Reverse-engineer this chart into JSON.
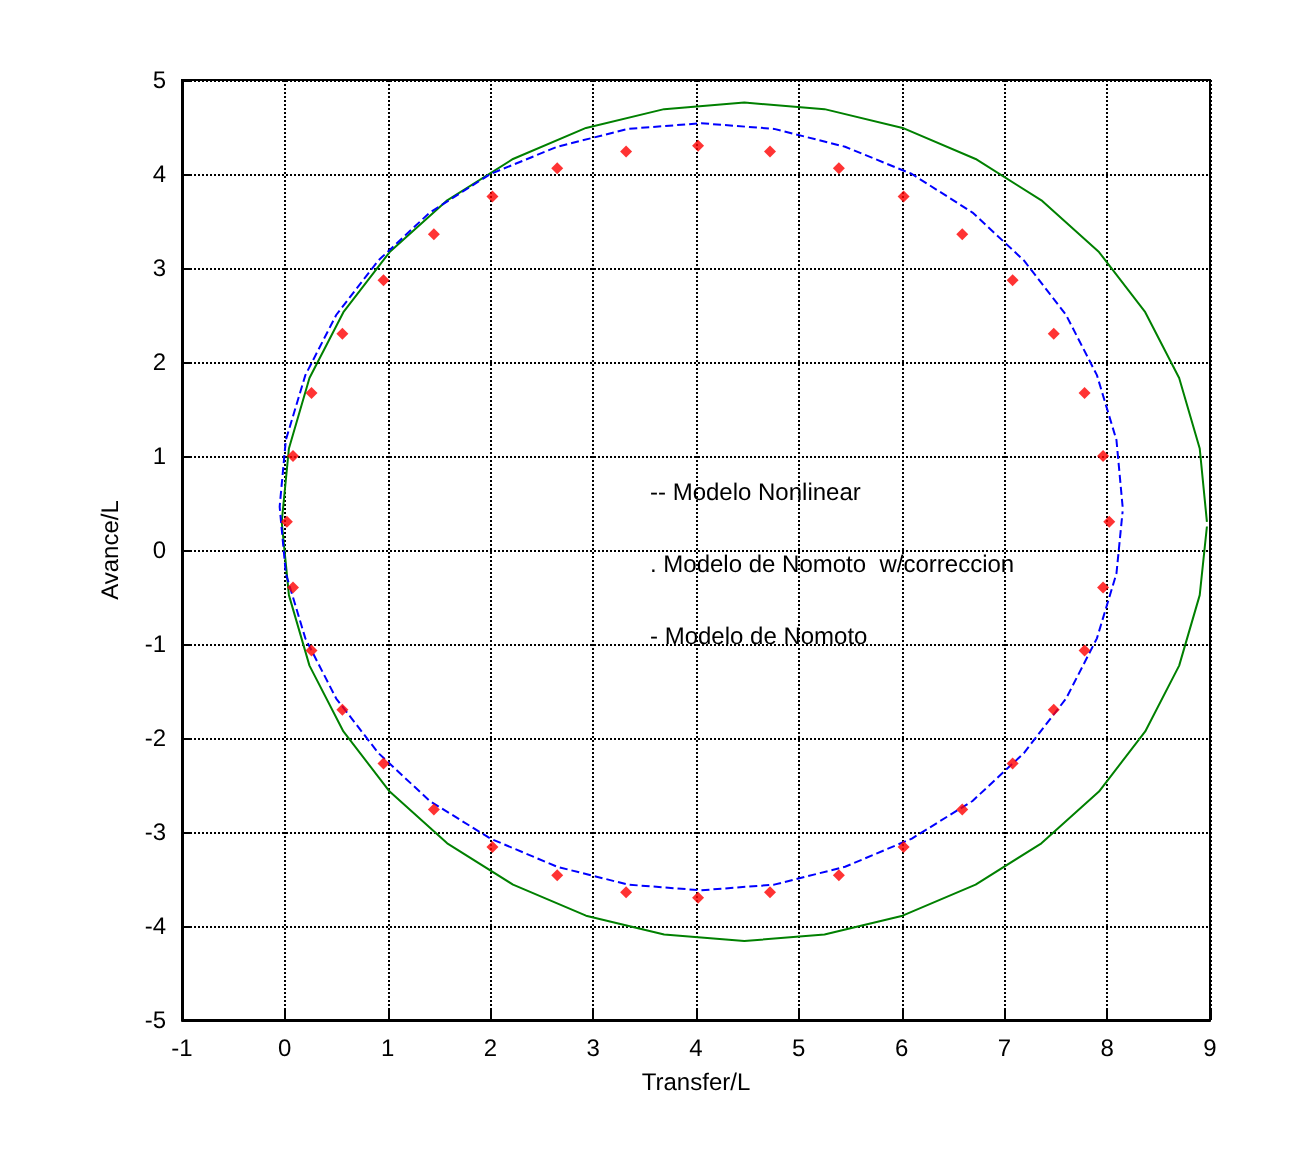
{
  "chart_data": {
    "type": "line",
    "xlabel": "Transfer/L",
    "ylabel": "Avance/L",
    "annotations": [
      "-- Modelo Nonlinear",
      ". Modelo de Nomoto  w/correccion",
      "- Modelo de Nomoto"
    ],
    "xlim": [
      -1,
      9
    ],
    "xticks": [
      -1,
      0,
      1,
      2,
      3,
      4,
      5,
      6,
      7,
      8,
      9
    ],
    "ylim": [
      -5,
      5
    ],
    "yticks": [
      -5,
      -4,
      -3,
      -2,
      -1,
      0,
      1,
      2,
      3,
      4,
      5
    ],
    "grid": true,
    "series": [
      {
        "type": "line",
        "color": "#008000",
        "line_style": "solid",
        "marker": "none",
        "x": [
          8.97,
          8.9,
          8.7,
          8.37,
          7.92,
          7.36,
          6.72,
          6.01,
          5.25,
          4.47,
          3.69,
          2.93,
          2.22,
          1.58,
          1.02,
          0.57,
          0.24,
          0.04,
          -0.03,
          0.04,
          0.24,
          0.57,
          1.02,
          1.58,
          2.22,
          2.93,
          3.69,
          4.47,
          5.25,
          6.01,
          6.72,
          7.36,
          7.92,
          8.37,
          8.7,
          8.9,
          8.97
        ],
        "values": [
          0.3,
          1.08,
          1.83,
          2.53,
          3.17,
          3.72,
          4.16,
          4.49,
          4.69,
          4.76,
          4.69,
          4.49,
          4.16,
          3.72,
          3.17,
          2.53,
          1.83,
          1.08,
          0.3,
          -0.48,
          -1.23,
          -1.93,
          -2.57,
          -3.12,
          -3.56,
          -3.89,
          -4.09,
          -4.16,
          -4.09,
          -3.89,
          -3.56,
          -3.12,
          -2.57,
          -1.93,
          -1.23,
          -0.48,
          0.25
        ]
      },
      {
        "type": "line",
        "color": "#0000ff",
        "line_style": "dashed",
        "marker": "none",
        "x": [
          8.15,
          8.09,
          7.9,
          7.6,
          7.19,
          6.69,
          6.1,
          5.45,
          4.76,
          4.05,
          3.34,
          2.65,
          2.0,
          1.41,
          0.91,
          0.5,
          0.2,
          0.01,
          -0.05,
          0.01,
          0.2,
          0.5,
          0.91,
          1.41,
          2.0,
          2.65,
          3.34,
          4.05,
          4.76,
          5.45,
          6.1,
          6.69,
          7.19,
          7.6,
          7.9,
          8.09,
          8.15
        ],
        "values": [
          0.46,
          1.17,
          1.86,
          2.5,
          3.08,
          3.59,
          4.0,
          4.29,
          4.48,
          4.54,
          4.48,
          4.29,
          4.0,
          3.59,
          3.08,
          2.5,
          1.86,
          1.17,
          0.46,
          -0.25,
          -0.94,
          -1.58,
          -2.16,
          -2.67,
          -3.07,
          -3.37,
          -3.56,
          -3.62,
          -3.56,
          -3.37,
          -3.07,
          -2.67,
          -2.16,
          -1.58,
          -0.94,
          -0.25,
          0.41
        ]
      },
      {
        "type": "scatter",
        "color": "#ff0000",
        "marker": "diamond",
        "x": [
          8.02,
          7.96,
          7.78,
          7.48,
          7.08,
          6.59,
          6.02,
          5.39,
          4.72,
          4.02,
          3.32,
          2.65,
          2.02,
          1.45,
          0.96,
          0.56,
          0.26,
          0.08,
          0.02,
          0.08,
          0.26,
          0.56,
          0.96,
          1.45,
          2.02,
          2.65,
          3.32,
          4.02,
          4.72,
          5.39,
          6.02,
          6.59,
          7.08,
          7.48,
          7.78,
          7.96
        ],
        "values": [
          0.3,
          1.0,
          1.67,
          2.3,
          2.87,
          3.36,
          3.76,
          4.06,
          4.24,
          4.3,
          4.24,
          4.06,
          3.76,
          3.36,
          2.87,
          2.3,
          1.67,
          1.0,
          0.3,
          -0.4,
          -1.07,
          -1.7,
          -2.27,
          -2.76,
          -3.16,
          -3.46,
          -3.64,
          -3.7,
          -3.64,
          -3.46,
          -3.16,
          -2.76,
          -2.27,
          -1.7,
          -1.07,
          -0.4
        ]
      }
    ]
  }
}
